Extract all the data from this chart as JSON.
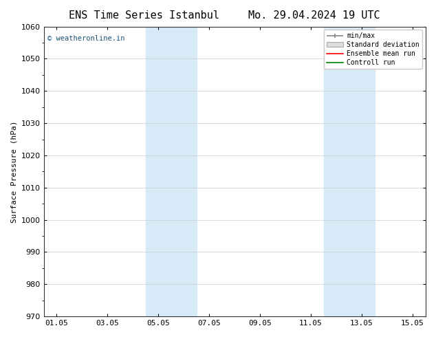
{
  "title_left": "ENS Time Series Istanbul",
  "title_right": "Mo. 29.04.2024 19 UTC",
  "ylabel": "Surface Pressure (hPa)",
  "ylim": [
    970,
    1060
  ],
  "yticks": [
    970,
    980,
    990,
    1000,
    1010,
    1020,
    1030,
    1040,
    1050,
    1060
  ],
  "xtick_labels": [
    "01.05",
    "03.05",
    "05.05",
    "07.05",
    "09.05",
    "11.05",
    "13.05",
    "15.05"
  ],
  "xtick_positions": [
    0,
    2,
    4,
    6,
    8,
    10,
    12,
    14
  ],
  "xlim": [
    -0.5,
    14.5
  ],
  "shaded_bands": [
    {
      "x_start": 3.5,
      "x_end": 5.5
    },
    {
      "x_start": 10.5,
      "x_end": 12.5
    }
  ],
  "shaded_color": "#d6eaf8",
  "watermark_text": "© weatheronline.in",
  "watermark_color": "#1a5276",
  "legend_labels": [
    "min/max",
    "Standard deviation",
    "Ensemble mean run",
    "Controll run"
  ],
  "legend_colors": [
    "#888888",
    "#bbbbbb",
    "#ff0000",
    "#008000"
  ],
  "background_color": "#ffffff",
  "grid_color": "#cccccc",
  "title_fontsize": 11,
  "axis_fontsize": 8,
  "ylabel_fontsize": 8
}
